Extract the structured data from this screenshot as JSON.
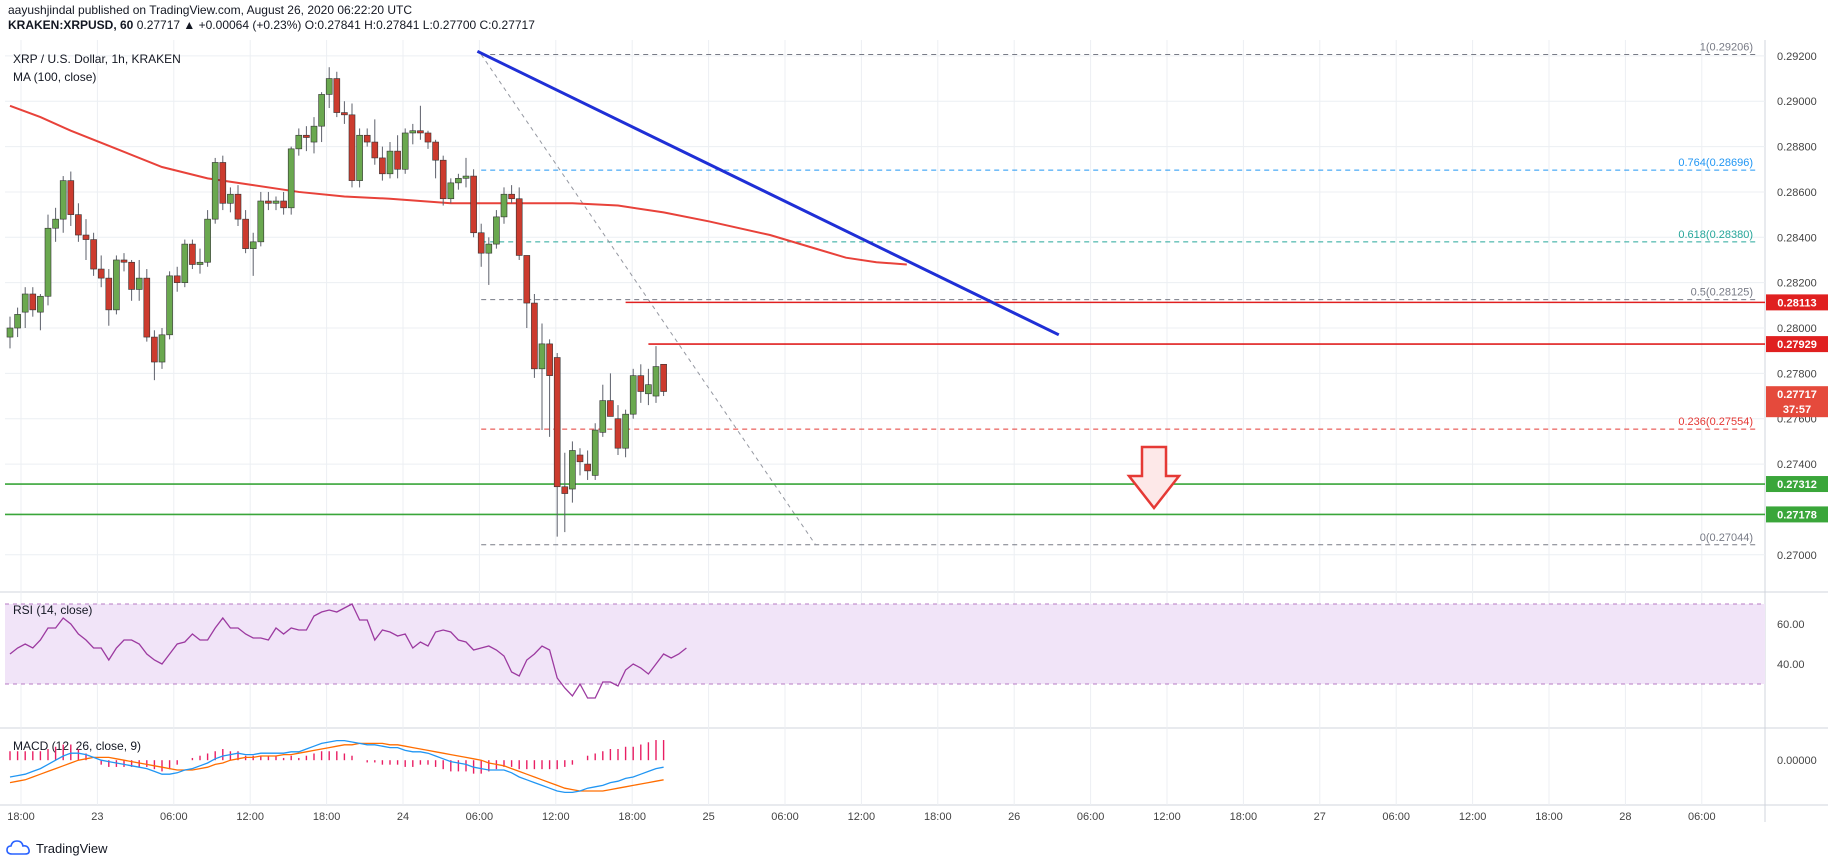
{
  "header": {
    "published": "aayushjindal published on TradingView.com, August 26, 2020 06:22:20 UTC",
    "symbol": "KRAKEN:XRPUSD, 60",
    "quote": "0.27717 ▲ +0.00064 (+0.23%) O:0.27841 H:0.27841 L:0.27700 C:0.27717"
  },
  "colors": {
    "up": "#6aa84f",
    "down": "#cc3b2e",
    "ma": "#e8423a",
    "trendline": "#1f2fd6",
    "resistance": "#e02020",
    "support": "#3aa63a",
    "rsi": "#9c3aa0",
    "rsi_band": "#f1e4f8",
    "macd": "#2196f3",
    "signal": "#ff6d00",
    "hist": "#e91e63",
    "fib_blue": "#2196f3",
    "fib_green": "#26a69a",
    "fib_red": "#e53935",
    "fib_gray": "#787b86",
    "arrow": "#e53935"
  },
  "chart_data": [
    {
      "type": "candlestick",
      "title": "XRP / U.S. Dollar, 1h, KRAKEN",
      "indicator": "MA (100, close)",
      "ylim": [
        0.2688,
        0.2927
      ],
      "y_ticks": [
        "0.27000",
        "0.27400",
        "0.27600",
        "0.27800",
        "0.28000",
        "0.28200",
        "0.28400",
        "0.28600",
        "0.28800",
        "0.29000",
        "0.29200"
      ],
      "x_ticks": [
        "18:00",
        "23",
        "06:00",
        "12:00",
        "18:00",
        "24",
        "06:00",
        "12:00",
        "18:00",
        "25",
        "06:00",
        "12:00",
        "18:00",
        "26",
        "06:00",
        "12:00",
        "18:00",
        "27",
        "06:00",
        "12:00",
        "18:00",
        "28",
        "06:00"
      ],
      "candles_ohlc": [
        [
          0.2796,
          0.2805,
          0.2791,
          0.28
        ],
        [
          0.28,
          0.2809,
          0.2796,
          0.2806
        ],
        [
          0.2807,
          0.2818,
          0.28,
          0.2815
        ],
        [
          0.2815,
          0.2818,
          0.2805,
          0.2808
        ],
        [
          0.2807,
          0.2815,
          0.2799,
          0.2814
        ],
        [
          0.2814,
          0.285,
          0.281,
          0.2844
        ],
        [
          0.2844,
          0.2853,
          0.2838,
          0.2848
        ],
        [
          0.2848,
          0.2867,
          0.2842,
          0.2865
        ],
        [
          0.2865,
          0.2869,
          0.2845,
          0.285
        ],
        [
          0.285,
          0.2855,
          0.2838,
          0.2841
        ],
        [
          0.2841,
          0.2848,
          0.283,
          0.2839
        ],
        [
          0.2839,
          0.2842,
          0.2823,
          0.2826
        ],
        [
          0.2826,
          0.2832,
          0.2818,
          0.2822
        ],
        [
          0.2822,
          0.2826,
          0.2801,
          0.2808
        ],
        [
          0.2808,
          0.2832,
          0.2806,
          0.283
        ],
        [
          0.283,
          0.2833,
          0.2825,
          0.2829
        ],
        [
          0.2829,
          0.283,
          0.2812,
          0.2817
        ],
        [
          0.2817,
          0.283,
          0.2812,
          0.2822
        ],
        [
          0.2822,
          0.2826,
          0.2794,
          0.2796
        ],
        [
          0.2796,
          0.2799,
          0.2777,
          0.2785
        ],
        [
          0.2785,
          0.28,
          0.2782,
          0.2797
        ],
        [
          0.2797,
          0.2825,
          0.2795,
          0.2823
        ],
        [
          0.2823,
          0.2827,
          0.2816,
          0.282
        ],
        [
          0.282,
          0.2839,
          0.2818,
          0.2837
        ],
        [
          0.2837,
          0.2839,
          0.2826,
          0.2828
        ],
        [
          0.2828,
          0.2835,
          0.2824,
          0.2829
        ],
        [
          0.2829,
          0.2852,
          0.2827,
          0.2848
        ],
        [
          0.2848,
          0.2875,
          0.2846,
          0.2873
        ],
        [
          0.2873,
          0.2876,
          0.2852,
          0.2855
        ],
        [
          0.2855,
          0.2862,
          0.2851,
          0.2859
        ],
        [
          0.2859,
          0.2863,
          0.2845,
          0.2848
        ],
        [
          0.2848,
          0.2852,
          0.2833,
          0.2835
        ],
        [
          0.2835,
          0.2842,
          0.2823,
          0.2838
        ],
        [
          0.2838,
          0.286,
          0.2836,
          0.2856
        ],
        [
          0.2856,
          0.286,
          0.2852,
          0.2855
        ],
        [
          0.2855,
          0.2858,
          0.2852,
          0.2856
        ],
        [
          0.2856,
          0.286,
          0.285,
          0.2853
        ],
        [
          0.2853,
          0.288,
          0.285,
          0.2879
        ],
        [
          0.2879,
          0.2888,
          0.2876,
          0.2885
        ],
        [
          0.2885,
          0.2889,
          0.2878,
          0.2884
        ],
        [
          0.2882,
          0.2893,
          0.2877,
          0.2889
        ],
        [
          0.2889,
          0.2904,
          0.2882,
          0.2903
        ],
        [
          0.2903,
          0.2915,
          0.2897,
          0.291
        ],
        [
          0.291,
          0.2913,
          0.2893,
          0.2895
        ],
        [
          0.2895,
          0.29,
          0.289,
          0.2894
        ],
        [
          0.2894,
          0.2899,
          0.2862,
          0.2865
        ],
        [
          0.2865,
          0.2888,
          0.2862,
          0.2885
        ],
        [
          0.2885,
          0.2888,
          0.288,
          0.2882
        ],
        [
          0.2882,
          0.2892,
          0.2872,
          0.2875
        ],
        [
          0.2875,
          0.288,
          0.2865,
          0.2868
        ],
        [
          0.2868,
          0.2882,
          0.2866,
          0.2878
        ],
        [
          0.2878,
          0.2885,
          0.2866,
          0.287
        ],
        [
          0.287,
          0.2888,
          0.2868,
          0.2886
        ],
        [
          0.2886,
          0.289,
          0.2881,
          0.2887
        ],
        [
          0.2887,
          0.2898,
          0.2883,
          0.2886
        ],
        [
          0.2886,
          0.2887,
          0.2879,
          0.2882
        ],
        [
          0.2882,
          0.2883,
          0.2866,
          0.2874
        ],
        [
          0.2874,
          0.2876,
          0.2854,
          0.2857
        ],
        [
          0.2857,
          0.2866,
          0.2855,
          0.2864
        ],
        [
          0.2864,
          0.2868,
          0.2861,
          0.2866
        ],
        [
          0.2866,
          0.2875,
          0.2862,
          0.2867
        ],
        [
          0.2867,
          0.287,
          0.284,
          0.2842
        ],
        [
          0.2842,
          0.2846,
          0.2827,
          0.2833
        ],
        [
          0.2833,
          0.284,
          0.2819,
          0.2837
        ],
        [
          0.2837,
          0.2852,
          0.2835,
          0.2849
        ],
        [
          0.2849,
          0.2862,
          0.2846,
          0.2859
        ],
        [
          0.2859,
          0.2863,
          0.2855,
          0.2857
        ],
        [
          0.2857,
          0.2862,
          0.283,
          0.2832
        ],
        [
          0.2832,
          0.2832,
          0.28,
          0.2811
        ],
        [
          0.2811,
          0.2815,
          0.2778,
          0.2782
        ],
        [
          0.2782,
          0.2802,
          0.2755,
          0.2793
        ],
        [
          0.2793,
          0.2795,
          0.2752,
          0.2779
        ],
        [
          0.2787,
          0.2789,
          0.2708,
          0.273
        ],
        [
          0.273,
          0.2745,
          0.271,
          0.2727
        ],
        [
          0.2729,
          0.275,
          0.2723,
          0.2746
        ],
        [
          0.2744,
          0.2747,
          0.2735,
          0.2741
        ],
        [
          0.274,
          0.2746,
          0.2733,
          0.2737
        ],
        [
          0.2735,
          0.2758,
          0.2733,
          0.2755
        ],
        [
          0.2754,
          0.2775,
          0.2752,
          0.2768
        ],
        [
          0.2768,
          0.278,
          0.2762,
          0.2761
        ],
        [
          0.276,
          0.2766,
          0.2744,
          0.2747
        ],
        [
          0.2747,
          0.2764,
          0.2743,
          0.2762
        ],
        [
          0.2762,
          0.2782,
          0.276,
          0.2779
        ],
        [
          0.2779,
          0.2784,
          0.2767,
          0.2772
        ],
        [
          0.2771,
          0.2782,
          0.2766,
          0.2775
        ],
        [
          0.277,
          0.2792,
          0.2767,
          0.2783
        ],
        [
          0.2784,
          0.2784,
          0.277,
          0.2772
        ]
      ],
      "ma100": [
        [
          0.0,
          0.2898
        ],
        [
          4.0,
          0.2893
        ],
        [
          8.0,
          0.2887
        ],
        [
          14.0,
          0.2879
        ],
        [
          20.0,
          0.2871
        ],
        [
          26.0,
          0.2866
        ],
        [
          32.0,
          0.2863
        ],
        [
          38.0,
          0.286
        ],
        [
          44.0,
          0.2858
        ],
        [
          50.0,
          0.2857
        ],
        [
          58.0,
          0.2855
        ],
        [
          66.0,
          0.2855
        ],
        [
          74.0,
          0.2855
        ],
        [
          80.0,
          0.2854
        ],
        [
          86.0,
          0.2851
        ],
        [
          92.0,
          0.2847
        ],
        [
          100.0,
          0.2841
        ],
        [
          106.0,
          0.2835
        ],
        [
          110.0,
          0.2831
        ],
        [
          114.0,
          0.2829
        ],
        [
          118.0,
          0.2828
        ]
      ],
      "annotations": {
        "trendline": [
          [
            0.2922,
            0.2797
          ]
        ],
        "resistance": [
          0.28113,
          0.27929
        ],
        "support": [
          0.27312,
          0.27178
        ],
        "fib_levels": [
          {
            "label": "1(0.29206)",
            "value": 0.29206,
            "color": "fib_gray"
          },
          {
            "label": "0.764(0.28696)",
            "value": 0.28696,
            "color": "fib_blue"
          },
          {
            "label": "0.618(0.28380)",
            "value": 0.2838,
            "color": "fib_green"
          },
          {
            "label": "0.5(0.28125)",
            "value": 0.28125,
            "color": "fib_gray"
          },
          {
            "label": "0.236(0.27554)",
            "value": 0.27554,
            "color": "fib_red"
          },
          {
            "label": "0(0.27044)",
            "value": 0.27044,
            "color": "fib_gray"
          }
        ],
        "price_labels": [
          {
            "text": "0.28113",
            "value": 0.28113,
            "bg": "#e02020"
          },
          {
            "text": "0.27929",
            "value": 0.27929,
            "bg": "#e02020"
          },
          {
            "text": "0.27717",
            "value": 0.27717,
            "bg": "#e54a3c"
          },
          {
            "text": "37:57",
            "value": 0.27717,
            "bg": "#e54a3c",
            "sub": true
          },
          {
            "text": "0.27312",
            "value": 0.27312,
            "bg": "#3aa63a"
          },
          {
            "text": "0.27178",
            "value": 0.27178,
            "bg": "#3aa63a"
          }
        ]
      }
    },
    {
      "type": "line",
      "title": "RSI (14, close)",
      "ylim": [
        20,
        72
      ],
      "y_ticks": [
        "60.00",
        "40.00"
      ],
      "band": [
        30,
        70
      ],
      "values": [
        45,
        48,
        50,
        48,
        52,
        58,
        58,
        63,
        60,
        55,
        52,
        48,
        48,
        42,
        48,
        52,
        52,
        50,
        45,
        42,
        40,
        45,
        50,
        51,
        55,
        52,
        52,
        58,
        63,
        58,
        58,
        55,
        53,
        53,
        52,
        58,
        55,
        58,
        57,
        57,
        64,
        66,
        67,
        66,
        68,
        70,
        62,
        62,
        52,
        57,
        56,
        54,
        55,
        48,
        51,
        49,
        56,
        57,
        56,
        52,
        51,
        47,
        48,
        49,
        47,
        44,
        36,
        34,
        42,
        45,
        49,
        47,
        33,
        28,
        24,
        30,
        23,
        23,
        31,
        31,
        29,
        37,
        40,
        38,
        35,
        40,
        45,
        43,
        45,
        48
      ]
    },
    {
      "type": "line",
      "title": "MACD (12, 26, close, 9)",
      "ylim": [
        -0.0027,
        0.0018
      ],
      "y_ticks": [
        "0.00000"
      ],
      "series": [
        {
          "name": "MACD",
          "values": [
            -0.0012,
            -0.0011,
            -0.001,
            -0.0008,
            -0.0006,
            -0.0003,
            0.0,
            0.0003,
            0.0005,
            0.0005,
            0.0004,
            0.0002,
            0.0,
            -0.0001,
            -0.0002,
            -0.0003,
            -0.0004,
            -0.0005,
            -0.0006,
            -0.0008,
            -0.001,
            -0.001,
            -0.0009,
            -0.0007,
            -0.0006,
            -0.0004,
            -0.0002,
            0.0001,
            0.0003,
            0.0004,
            0.0005,
            0.0004,
            0.0004,
            0.0005,
            0.0005,
            0.0005,
            0.0005,
            0.0006,
            0.0006,
            0.0008,
            0.001,
            0.0012,
            0.0013,
            0.0014,
            0.0014,
            0.0013,
            0.0012,
            0.0011,
            0.0011,
            0.001,
            0.0009,
            0.0009,
            0.0007,
            0.0006,
            0.0006,
            0.0005,
            0.0003,
            0.0001,
            -0.0001,
            -0.0002,
            -0.0003,
            -0.0005,
            -0.0006,
            -0.0007,
            -0.0007,
            -0.0007,
            -0.0009,
            -0.0012,
            -0.0014,
            -0.0016,
            -0.0018,
            -0.002,
            -0.0022,
            -0.0023,
            -0.0023,
            -0.0022,
            -0.002,
            -0.0019,
            -0.0018,
            -0.0016,
            -0.0015,
            -0.0013,
            -0.0012,
            -0.001,
            -0.0008,
            -0.0006,
            -0.0005
          ]
        },
        {
          "name": "Signal",
          "values": [
            -0.0016,
            -0.0015,
            -0.0014,
            -0.0012,
            -0.001,
            -0.0008,
            -0.0006,
            -0.0004,
            -0.0002,
            0.0,
            0.0001,
            0.0002,
            0.0002,
            0.0002,
            0.0001,
            0.0,
            -0.0001,
            -0.0002,
            -0.0003,
            -0.0004,
            -0.0005,
            -0.0006,
            -0.0007,
            -0.0007,
            -0.0007,
            -0.0006,
            -0.0005,
            -0.0003,
            -0.0002,
            0.0,
            0.0001,
            0.0002,
            0.0002,
            0.0003,
            0.0003,
            0.0003,
            0.0004,
            0.0004,
            0.0005,
            0.0006,
            0.0007,
            0.0008,
            0.0009,
            0.001,
            0.0011,
            0.0011,
            0.0012,
            0.0012,
            0.0012,
            0.0012,
            0.0011,
            0.0011,
            0.001,
            0.0009,
            0.0008,
            0.0007,
            0.0006,
            0.0005,
            0.0004,
            0.0003,
            0.0002,
            0.0001,
            0.0,
            -0.0002,
            -0.0003,
            -0.0004,
            -0.0006,
            -0.0008,
            -0.001,
            -0.0012,
            -0.0014,
            -0.0016,
            -0.0018,
            -0.002,
            -0.0021,
            -0.0022,
            -0.0022,
            -0.0022,
            -0.0022,
            -0.0021,
            -0.002,
            -0.0019,
            -0.0018,
            -0.0017,
            -0.0016,
            -0.0015,
            -0.0014
          ]
        }
      ]
    }
  ],
  "footer": {
    "brand": "TradingView"
  }
}
